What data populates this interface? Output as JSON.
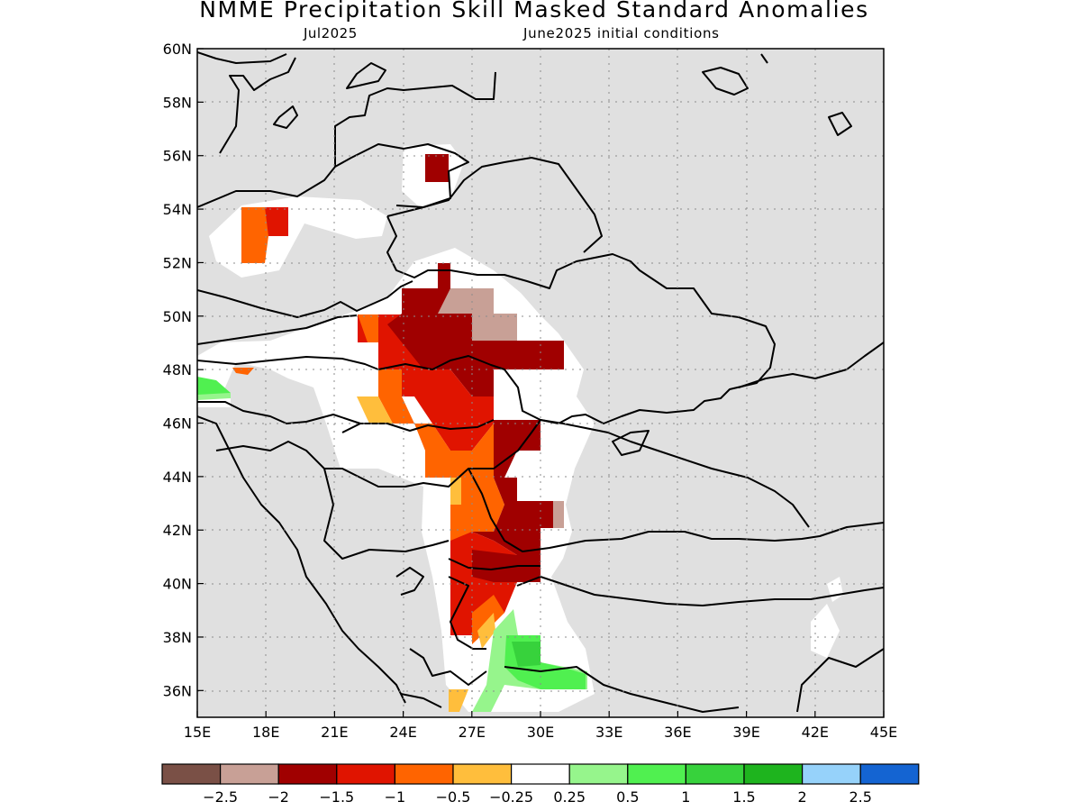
{
  "title": "NMME Precipitation Skill Masked Standard Anomalies",
  "subtitle_left": "Jul2025",
  "subtitle_right": "June2025 initial conditions",
  "map": {
    "lon_range": [
      15,
      45
    ],
    "lat_range": [
      35,
      60
    ],
    "lon_ticks": [
      "15E",
      "18E",
      "21E",
      "24E",
      "27E",
      "30E",
      "33E",
      "36E",
      "39E",
      "42E",
      "45E"
    ],
    "lat_ticks": [
      "36N",
      "38N",
      "40N",
      "42N",
      "44N",
      "46N",
      "48N",
      "50N",
      "52N",
      "54N",
      "56N",
      "58N",
      "60N"
    ],
    "land_color": "#e0e0e0",
    "gridlines": true
  },
  "colorbar": {
    "colors": [
      "#7a5046",
      "#c8a096",
      "#a00000",
      "#e01400",
      "#ff6400",
      "#ffbe3c",
      "#ffffff",
      "#96f58c",
      "#50f050",
      "#37d23c",
      "#1eb41e",
      "#96d2fa",
      "#1464d2"
    ],
    "labels": [
      "−2.5",
      "−2",
      "−1.5",
      "−1",
      "−0.5",
      "−0.25",
      "0.25",
      "0.5",
      "1",
      "1.5",
      "2",
      "2.5"
    ]
  }
}
